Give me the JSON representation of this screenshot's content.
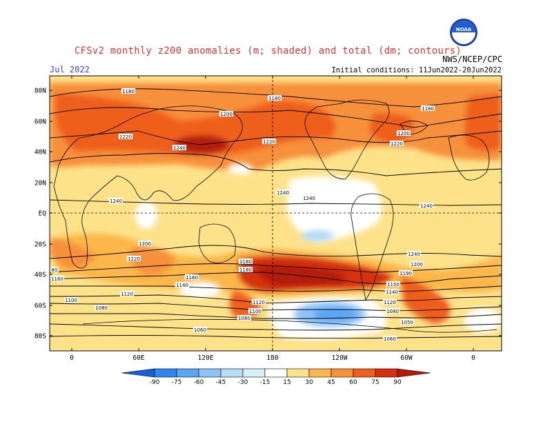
{
  "title": "CFSv2 monthly z200 anomalies (m; shaded) and total (dm; contours)",
  "month": "Jul 2022",
  "agency": "NWS/NCEP/CPC",
  "logo_text": "NOAA",
  "initial_conditions": "Initial conditions: 11Jun2022-20Jun2022",
  "lat_labels": [
    "80N",
    "60N",
    "40N",
    "20N",
    "EQ",
    "20S",
    "40S",
    "60S",
    "80S"
  ],
  "lon_labels": [
    "0",
    "60E",
    "120E",
    "180",
    "120W",
    "60W",
    "0"
  ],
  "colorbar": {
    "labels": [
      "-90",
      "-75",
      "-60",
      "-45",
      "-30",
      "-15",
      "15",
      "30",
      "45",
      "60",
      "75",
      "90"
    ],
    "colors": [
      "#1560d8",
      "#2f86ef",
      "#5aa6f4",
      "#8cc4f7",
      "#b5dcf9",
      "#d8f0fb",
      "#ffffff",
      "#fde28a",
      "#fbb74a",
      "#f7903a",
      "#ef5e1c",
      "#d6300f",
      "#b41a0a"
    ]
  },
  "contour_labels": [
    "1180",
    "1180",
    "1180",
    "1200",
    "1200",
    "1220",
    "1220",
    "1220",
    "1240",
    "1240",
    "1240",
    "1240",
    "1240",
    "1240",
    "1200",
    "1220",
    "1200",
    "1180",
    "1180",
    "1160",
    "1160",
    "1150",
    "1140",
    "1140",
    "1120",
    "1120",
    "1120",
    "1100",
    "1100",
    "1080",
    "1080",
    "1080",
    "1060",
    "1060",
    "1050",
    "1190",
    "80"
  ]
}
